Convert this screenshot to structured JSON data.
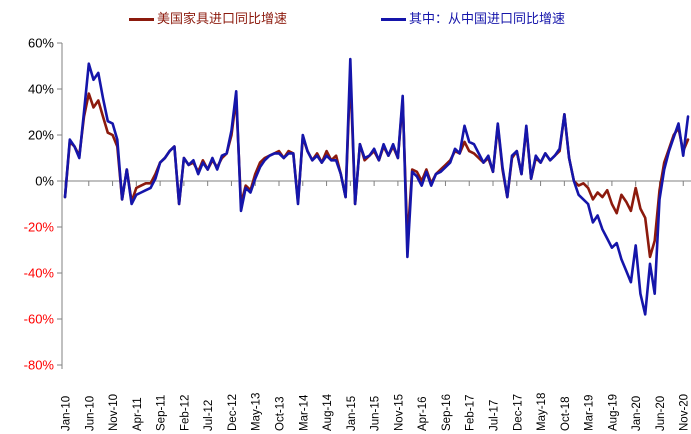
{
  "chart_data": {
    "type": "line",
    "title": "",
    "xlabel": "",
    "ylabel": "",
    "y_tick_suffix": "%",
    "y_ticks": [
      60,
      40,
      20,
      0,
      -20,
      -40,
      -60,
      -80
    ],
    "ylim": [
      -80,
      60
    ],
    "grid": "zero-line-only",
    "legend_position": "top",
    "x_tick_labels": [
      "Jan-10",
      "Jun-10",
      "Nov-10",
      "Apr-11",
      "Sep-11",
      "Feb-12",
      "Jul-12",
      "Dec-12",
      "May-13",
      "Oct-13",
      "Mar-14",
      "Aug-14",
      "Jan-15",
      "Jun-15",
      "Nov-15",
      "Apr-16",
      "Sep-16",
      "Feb-17",
      "Jul-17",
      "Dec-17",
      "May-18",
      "Oct-18",
      "Mar-19",
      "Aug-19",
      "Jan-20",
      "Jun-20",
      "Nov-20"
    ],
    "x_tick_indices": [
      0,
      5,
      10,
      15,
      20,
      25,
      30,
      35,
      40,
      45,
      50,
      55,
      60,
      65,
      70,
      75,
      80,
      85,
      90,
      95,
      100,
      105,
      110,
      115,
      120,
      125,
      130
    ],
    "x_range_note": "monthly data Jan-2010 to Dec-2020, 132 points",
    "series": [
      {
        "name": "美国家具进口同比增速",
        "color": "#8C1A0D",
        "values": [
          -7,
          17,
          15,
          11,
          28,
          38,
          32,
          35,
          28,
          21,
          20,
          15,
          -8,
          5,
          -9,
          -3,
          -2,
          -1,
          -1,
          3,
          8,
          10,
          13,
          15,
          -10,
          10,
          7,
          8,
          4,
          9,
          5,
          9,
          6,
          10,
          12,
          20,
          36,
          -10,
          -2,
          -4,
          3,
          8,
          10,
          11,
          12,
          13,
          10,
          13,
          12,
          -9,
          19,
          13,
          9,
          12,
          8,
          13,
          9,
          11,
          3,
          -7,
          47,
          -10,
          16,
          9,
          11,
          13,
          9,
          15,
          11,
          15,
          10,
          35,
          -26,
          5,
          4,
          0,
          5,
          -1,
          3,
          5,
          7,
          9,
          13,
          12,
          17,
          13,
          12,
          10,
          8,
          10,
          4,
          24,
          5,
          -7,
          10,
          13,
          3,
          23,
          1,
          10,
          8,
          12,
          9,
          11,
          13,
          29,
          10,
          0,
          -2,
          -1,
          -3,
          -8,
          -5,
          -7,
          -4,
          -10,
          -14,
          -6,
          -9,
          -13,
          -3,
          -12,
          -16,
          -33,
          -26,
          -4,
          8,
          14,
          20,
          23,
          13,
          18
        ]
      },
      {
        "name": "其中：从中国进口同比增速",
        "color": "#1515AA",
        "values": [
          -7,
          18,
          15,
          10,
          30,
          51,
          44,
          47,
          36,
          26,
          25,
          18,
          -8,
          5,
          -10,
          -6,
          -5,
          -4,
          -3,
          1,
          8,
          10,
          13,
          15,
          -10,
          10,
          7,
          9,
          3,
          8,
          5,
          10,
          5,
          11,
          12,
          22,
          39,
          -13,
          -3,
          -5,
          1,
          6,
          9,
          11,
          12,
          12,
          10,
          12,
          12,
          -10,
          20,
          13,
          9,
          11,
          8,
          11,
          9,
          9,
          3,
          -7,
          53,
          -10,
          16,
          10,
          11,
          14,
          9,
          16,
          11,
          16,
          10,
          37,
          -33,
          4,
          2,
          -2,
          4,
          -2,
          3,
          4,
          6,
          8,
          14,
          12,
          24,
          17,
          16,
          12,
          8,
          11,
          4,
          25,
          6,
          -7,
          11,
          13,
          3,
          24,
          1,
          11,
          8,
          12,
          9,
          11,
          14,
          29,
          10,
          0,
          -6,
          -8,
          -10,
          -18,
          -15,
          -21,
          -25,
          -29,
          -27,
          -34,
          -39,
          -44,
          -28,
          -49,
          -58,
          -36,
          -49,
          -8,
          5,
          13,
          19,
          25,
          11,
          28
        ]
      }
    ],
    "colors": {
      "axis": "#808080",
      "positive_tick_label": "#000000",
      "negative_tick_label": "#FF0000"
    }
  }
}
